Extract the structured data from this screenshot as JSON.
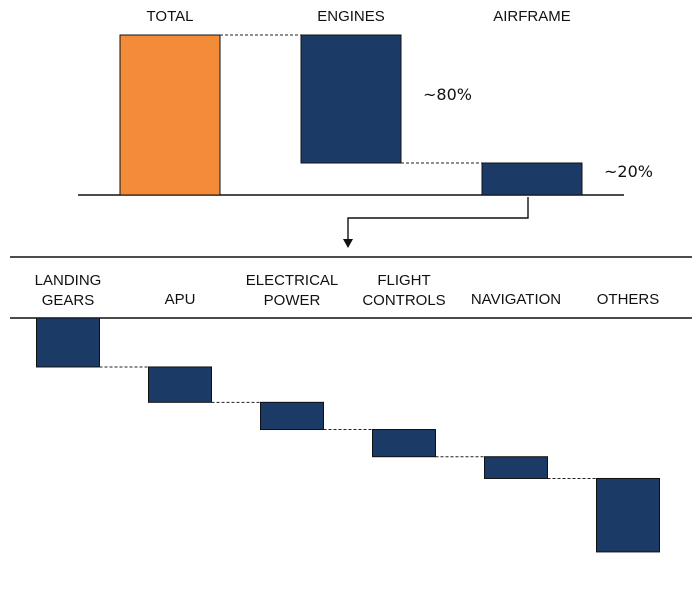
{
  "chart_data": [
    {
      "type": "waterfall",
      "title": "",
      "categories": [
        "TOTAL",
        "ENGINES",
        "AIRFRAME"
      ],
      "values": [
        100,
        -80,
        -20
      ],
      "measures": [
        "total",
        "relative",
        "relative"
      ],
      "annotations": [
        "",
        "~80%",
        "~20%"
      ],
      "colors": [
        "#F28C38",
        "#1B3A66",
        "#1B3A66"
      ]
    },
    {
      "type": "waterfall",
      "title": "",
      "parent": "AIRFRAME",
      "categories": [
        "LANDING GEARS",
        "APU",
        "ELECTRICAL POWER",
        "FLIGHT CONTROLS",
        "NAVIGATION",
        "OTHERS"
      ],
      "category_lines": [
        [
          "LANDING",
          "GEARS"
        ],
        [
          "APU"
        ],
        [
          "ELECTRICAL",
          "POWER"
        ],
        [
          "FLIGHT",
          "CONTROLS"
        ],
        [
          "NAVIGATION"
        ],
        [
          "OTHERS"
        ]
      ],
      "values": [
        -18,
        -13,
        -10,
        -10,
        -8,
        -27
      ],
      "start": 100,
      "colors": [
        "#1B3A66"
      ]
    }
  ]
}
